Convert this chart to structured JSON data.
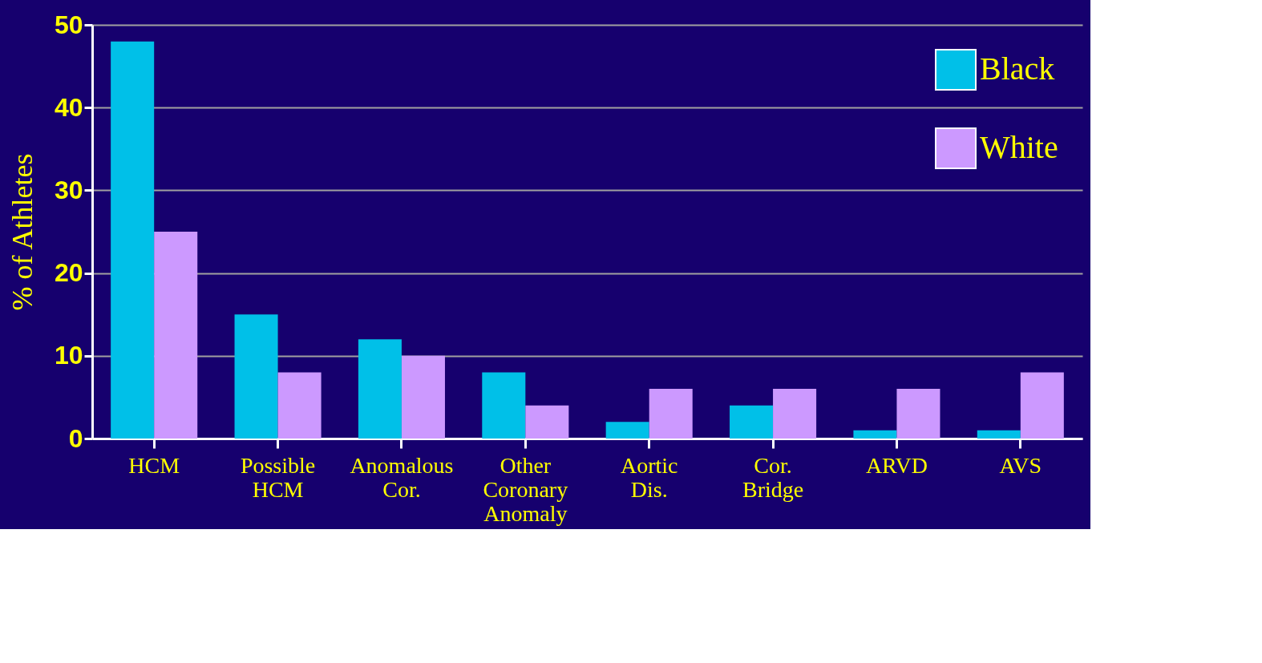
{
  "chart_data": {
    "type": "bar",
    "ylabel": "% of Athletes",
    "categories": [
      "HCM",
      "Possible HCM",
      "Anomalous Cor.",
      "Other Coronary Anomaly",
      "Aortic Dis.",
      "Cor. Bridge",
      "ARVD",
      "AVS"
    ],
    "series": [
      {
        "name": "Black",
        "color": "#00c0e8",
        "values": [
          48,
          15,
          12,
          8,
          2,
          4,
          1,
          1
        ]
      },
      {
        "name": "White",
        "color": "#cc99ff",
        "values": [
          25,
          8,
          10,
          4,
          6,
          6,
          6,
          8
        ]
      }
    ],
    "ylim": [
      0,
      50
    ],
    "yticks": [
      0,
      10,
      20,
      30,
      40,
      50
    ],
    "grid": "y",
    "legend": "top right"
  }
}
